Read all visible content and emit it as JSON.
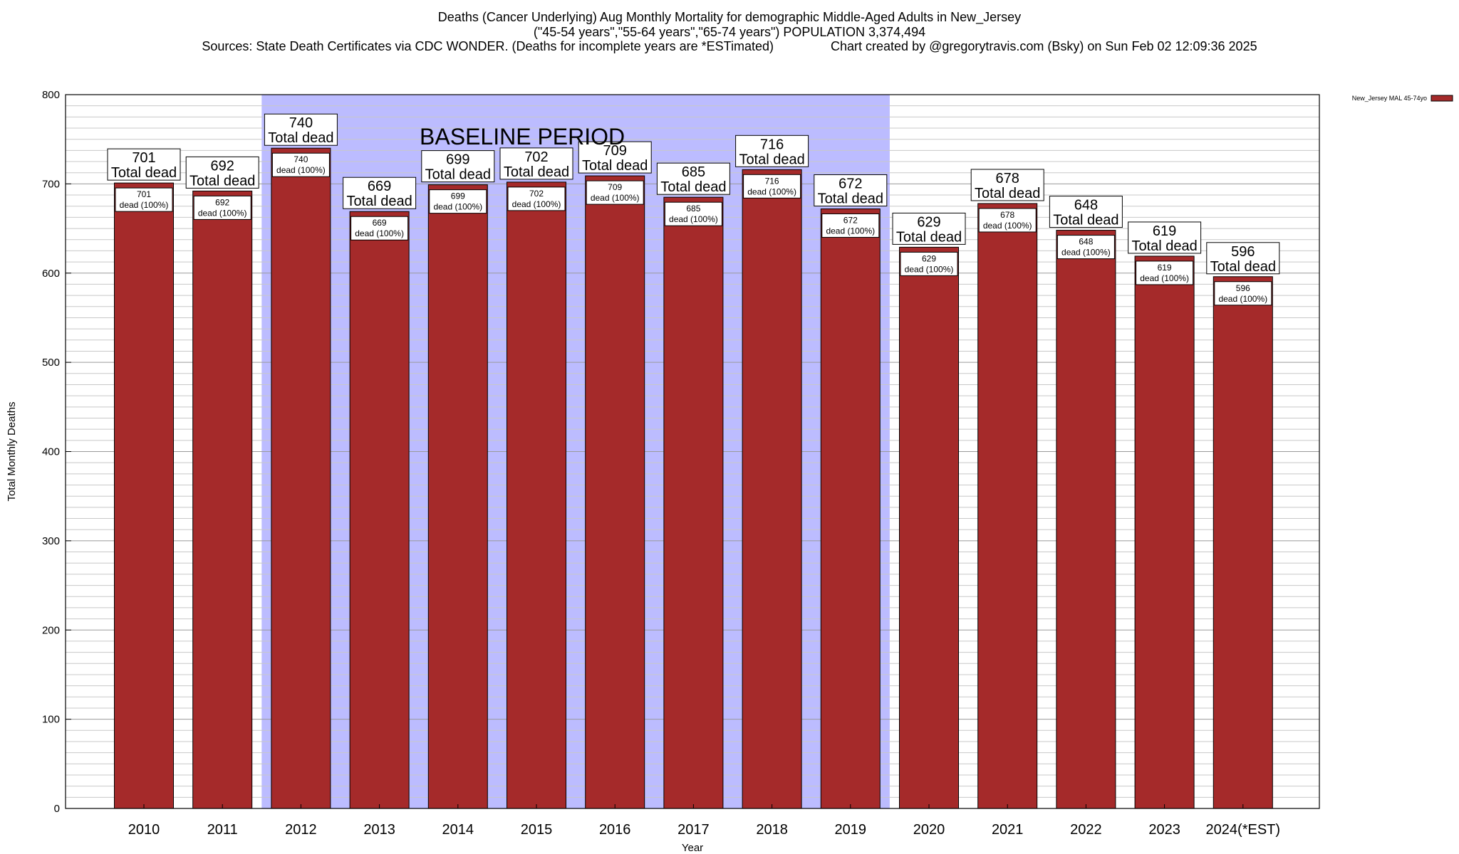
{
  "title_lines": [
    "Deaths (Cancer Underlying) Aug Monthly Mortality for demographic Middle-Aged Adults in New_Jersey",
    "(\"45-54 years\",\"55-64 years\",\"65-74 years\") POPULATION 3,374,494",
    "Sources: State Death Certificates via CDC WONDER. (Deaths for incomplete years are *ESTimated)                Chart created by @gregorytravis.com (Bsky) on Sun Feb 02 12:09:36 2025"
  ],
  "colors": {
    "bar": "#a52a2a",
    "baseline_shade": "#bcbcff",
    "grid": "#c8c8c8"
  },
  "chart_data": {
    "type": "bar",
    "xlabel": "Year",
    "ylabel": "Total Monthly Deaths",
    "ylim": [
      0,
      800
    ],
    "y_ticks": [
      0,
      100,
      200,
      300,
      400,
      500,
      600,
      700,
      800
    ],
    "grid": true,
    "legend_position": "top-right",
    "categories": [
      "2010",
      "2011",
      "2012",
      "2013",
      "2014",
      "2015",
      "2016",
      "2017",
      "2018",
      "2019",
      "2020",
      "2021",
      "2022",
      "2023",
      "2024(*EST)"
    ],
    "series": [
      {
        "name": "New_Jersey MAL 45-74yo",
        "values": [
          701,
          692,
          740,
          669,
          699,
          702,
          709,
          685,
          716,
          672,
          629,
          678,
          648,
          619,
          596
        ]
      }
    ],
    "total_label_suffix": "Total dead",
    "inner_label_suffix": "dead (100%)",
    "baseline_period": {
      "label": "BASELINE PERIOD",
      "start_category": "2012",
      "end_category": "2019"
    }
  }
}
